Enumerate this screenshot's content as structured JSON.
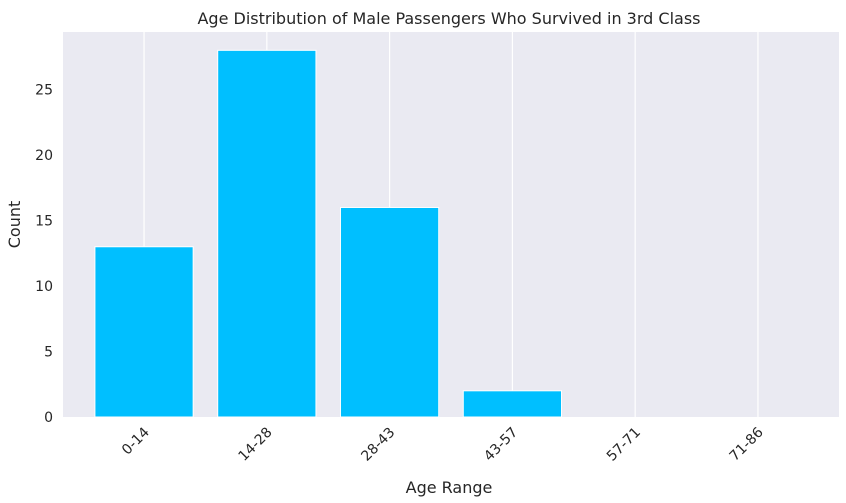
{
  "chart_data": {
    "type": "bar",
    "title": "Age Distribution of Male Passengers Who Survived in 3rd Class",
    "xlabel": "Age Range",
    "ylabel": "Count",
    "categories": [
      "0-14",
      "14-28",
      "28-43",
      "43-57",
      "57-71",
      "71-86"
    ],
    "values": [
      13,
      28,
      16,
      2,
      0,
      0
    ],
    "ylim": [
      0,
      29.4
    ],
    "yticks": [
      0,
      5,
      10,
      15,
      20,
      25
    ],
    "xtick_rotation": 45,
    "grid": "vertical only",
    "colors": {
      "bar": "#00BFFF",
      "plot_background": "#EAEAF2",
      "grid": "#FFFFFF"
    }
  }
}
